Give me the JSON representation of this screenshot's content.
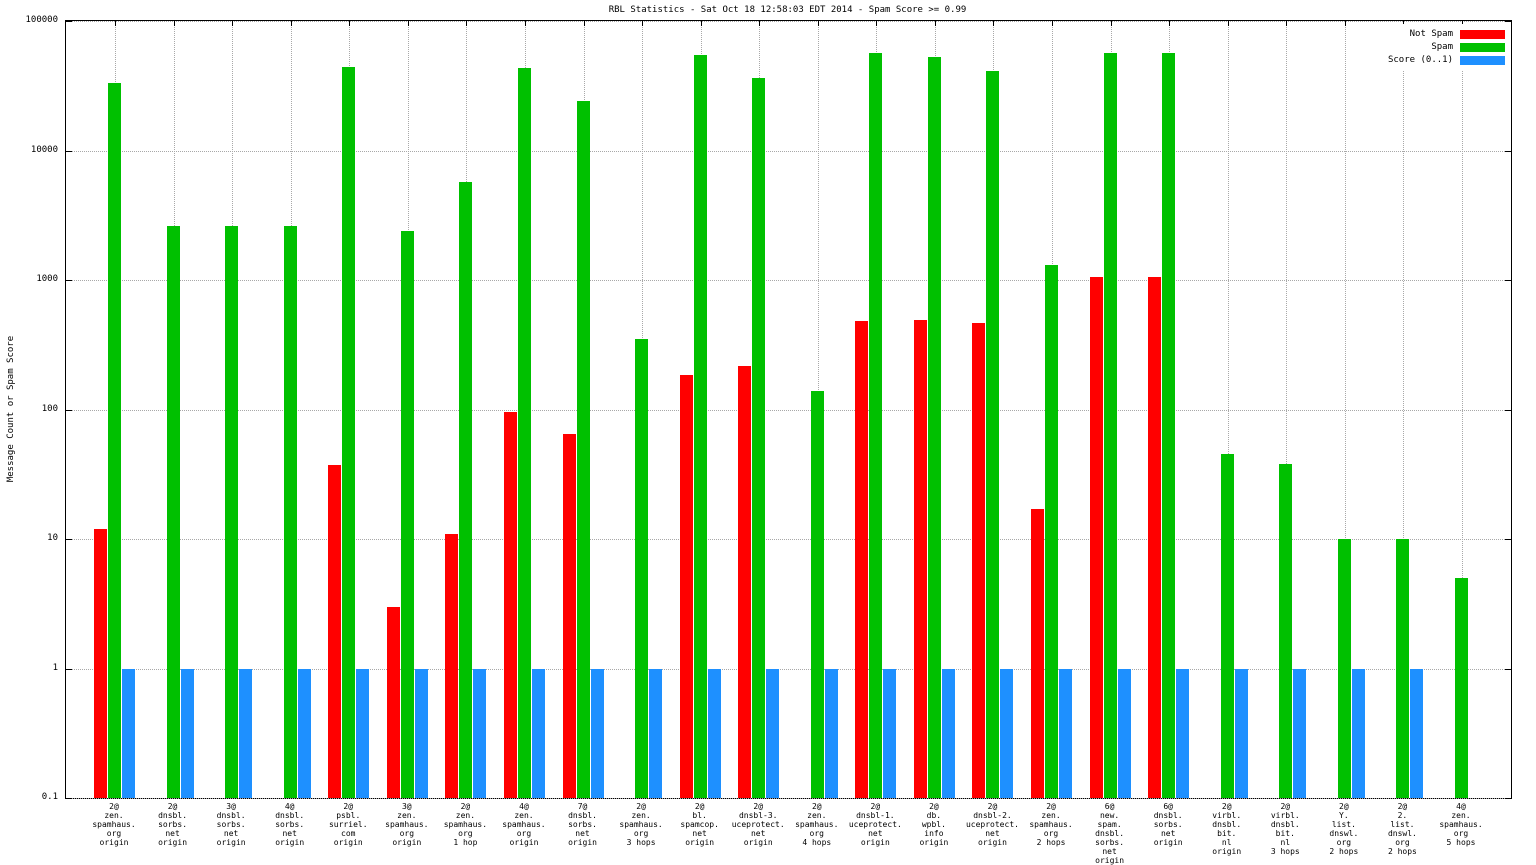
{
  "title": "RBL Statistics - Sat Oct 18 12:58:03 EDT 2014 - Spam Score >= 0.99",
  "ylabel": "Message Count or Spam Score",
  "colors": {
    "not_spam": "#ff0000",
    "spam": "#00c000",
    "score": "#1e90ff",
    "grid": "#a8a8a8",
    "axis": "#000000"
  },
  "chart_data": {
    "type": "bar",
    "scale": "log",
    "ylim": [
      0.1,
      100000
    ],
    "grid": true,
    "legend_position": "top-right",
    "yticks": [
      {
        "label": "0.1",
        "value": 0.1
      },
      {
        "label": "1",
        "value": 1
      },
      {
        "label": "10",
        "value": 10
      },
      {
        "label": "100",
        "value": 100
      },
      {
        "label": "1000",
        "value": 1000
      },
      {
        "label": "10000",
        "value": 10000
      },
      {
        "label": "100000",
        "value": 100000
      }
    ],
    "categories": [
      "2@\nzen.\nspamhaus.\norg\norigin",
      "2@\ndnsbl.\nsorbs.\nnet\norigin",
      "3@\ndnsbl.\nsorbs.\nnet\norigin",
      "4@\ndnsbl.\nsorbs.\nnet\norigin",
      "2@\npsbl.\nsurriel.\ncom\norigin",
      "3@\nzen.\nspamhaus.\norg\norigin",
      "2@\nzen.\nspamhaus.\norg\n1 hop",
      "4@\nzen.\nspamhaus.\norg\norigin",
      "7@\ndnsbl.\nsorbs.\nnet\norigin",
      "2@\nzen.\nspamhaus.\norg\n3 hops",
      "2@\nbl.\nspamcop.\nnet\norigin",
      "2@\ndnsbl-3.\nuceprotect.\nnet\norigin",
      "2@\nzen.\nspamhaus.\norg\n4 hops",
      "2@\ndnsbl-1.\nuceprotect.\nnet\norigin",
      "2@\ndb.\nwpbl.\ninfo\norigin",
      "2@\ndnsbl-2.\nuceprotect.\nnet\norigin",
      "2@\nzen.\nspamhaus.\norg\n2 hops",
      "6@\nnew.\nspam.\ndnsbl.\nsorbs.\nnet\norigin",
      "6@\ndnsbl.\nsorbs.\nnet\norigin",
      "2@\nvirbl.\ndnsbl.\nbit.\nnl\norigin",
      "2@\nvirbl.\ndnsbl.\nbit.\nnl\n3 hops",
      "2@\nY.\nlist.\ndnswl.\norg\n2 hops",
      "2@\n2.\nlist.\ndnswl.\norg\n2 hops",
      "4@\nzen.\nspamhaus.\norg\n5 hops"
    ],
    "series": [
      {
        "name": "Not Spam",
        "color": "#ff0000",
        "values": [
          12,
          null,
          null,
          null,
          37,
          3,
          11,
          95,
          65,
          null,
          185,
          215,
          null,
          480,
          490,
          465,
          17,
          1050,
          1050,
          null,
          null,
          null,
          null,
          null
        ]
      },
      {
        "name": "Spam",
        "color": "#00c000",
        "values": [
          33000,
          2600,
          2600,
          2600,
          44000,
          2400,
          5700,
          43000,
          24000,
          350,
          55000,
          36000,
          140,
          57000,
          53000,
          41000,
          1300,
          57000,
          57000,
          45,
          38,
          10,
          10,
          5
        ]
      },
      {
        "name": "Score (0..1)",
        "color": "#1e90ff",
        "values": [
          1,
          1,
          1,
          1,
          1,
          1,
          1,
          1,
          1,
          1,
          1,
          1,
          1,
          1,
          1,
          1,
          1,
          1,
          1,
          1,
          1,
          1,
          1,
          null
        ]
      }
    ]
  }
}
